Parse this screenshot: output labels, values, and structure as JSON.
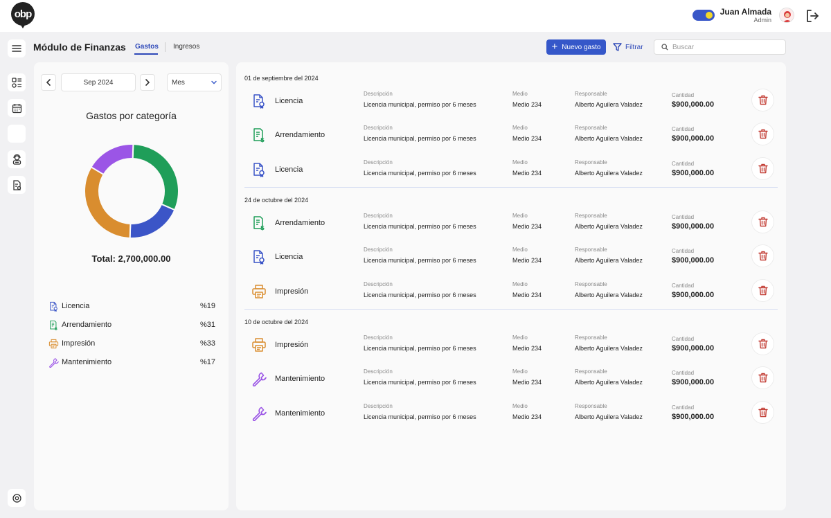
{
  "app": {
    "logo_text": "obp"
  },
  "user": {
    "name": "Juan Almada",
    "role": "Admin"
  },
  "header": {
    "title": "Módulo de Finanzas",
    "tabs": [
      {
        "label": "Gastos",
        "active": true
      },
      {
        "label": "Ingresos",
        "active": false
      }
    ],
    "new_button_label": "Nuevo gasto",
    "filter_label": "Filtrar",
    "search_placeholder": "Buscar"
  },
  "left_panel": {
    "month": "Sep 2024",
    "period": "Mes",
    "chart_title": "Gastos por categoría",
    "total": "Total: 2,700,000.00"
  },
  "chart_data": {
    "type": "pie",
    "categories": [
      "Licencia",
      "Arrendamiento",
      "Impresión",
      "Mantenimiento"
    ],
    "values": [
      19,
      31,
      33,
      17
    ],
    "colors": [
      "#3b55c7",
      "#1f9e59",
      "#d98d2f",
      "#9b55e6"
    ],
    "percent_labels": [
      "%19",
      "%31",
      "%33",
      "%17"
    ],
    "icons": [
      "license-icon",
      "lease-icon",
      "printer-icon",
      "wrench-icon"
    ]
  },
  "labels": {
    "descripcion": "Descripción",
    "medio": "Medio",
    "responsable": "Responsable",
    "cantidad": "Cantidad"
  },
  "groups": [
    {
      "date": "01 de septiembre del 2024",
      "rows": [
        {
          "category": "Licencia",
          "icon": "license-icon",
          "descripcion": "Licencia municipal, permiso por 6 meses",
          "medio": "Medio 234",
          "responsable": "Alberto Aguilera Valadez",
          "cantidad": "$900,000.00"
        },
        {
          "category": "Arrendamiento",
          "icon": "lease-icon",
          "descripcion": "Licencia municipal, permiso por 6 meses",
          "medio": "Medio 234",
          "responsable": "Alberto Aguilera Valadez",
          "cantidad": "$900,000.00"
        },
        {
          "category": "Licencia",
          "icon": "license-icon",
          "descripcion": "Licencia municipal, permiso por 6 meses",
          "medio": "Medio 234",
          "responsable": "Alberto Aguilera Valadez",
          "cantidad": "$900,000.00"
        }
      ]
    },
    {
      "date": "24 de octubre del 2024",
      "rows": [
        {
          "category": "Arrendamiento",
          "icon": "lease-icon",
          "descripcion": "Licencia municipal, permiso por 6 meses",
          "medio": "Medio 234",
          "responsable": "Alberto Aguilera Valadez",
          "cantidad": "$900,000.00"
        },
        {
          "category": "Licencia",
          "icon": "license-icon",
          "descripcion": "Licencia municipal, permiso por 6 meses",
          "medio": "Medio 234",
          "responsable": "Alberto Aguilera Valadez",
          "cantidad": "$900,000.00"
        },
        {
          "category": "Impresión",
          "icon": "printer-icon",
          "descripcion": "Licencia municipal, permiso por 6 meses",
          "medio": "Medio 234",
          "responsable": "Alberto Aguilera Valadez",
          "cantidad": "$900,000.00"
        }
      ]
    },
    {
      "date": "10 de octubre del 2024",
      "rows": [
        {
          "category": "Impresión",
          "icon": "printer-icon",
          "descripcion": "Licencia municipal, permiso por 6 meses",
          "medio": "Medio 234",
          "responsable": "Alberto Aguilera Valadez",
          "cantidad": "$900,000.00"
        },
        {
          "category": "Mantenimiento",
          "icon": "wrench-icon",
          "descripcion": "Licencia municipal, permiso por 6 meses",
          "medio": "Medio 234",
          "responsable": "Alberto Aguilera Valadez",
          "cantidad": "$900,000.00"
        },
        {
          "category": "Mantenimiento",
          "icon": "wrench-icon",
          "descripcion": "Licencia municipal, permiso por 6 meses",
          "medio": "Medio 234",
          "responsable": "Alberto Aguilera Valadez",
          "cantidad": "$900,000.00"
        }
      ]
    }
  ]
}
